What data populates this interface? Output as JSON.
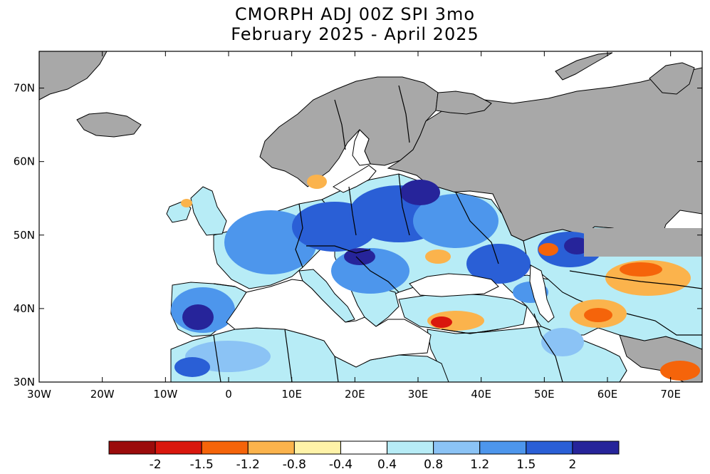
{
  "title": {
    "line1": "CMORPH ADJ 00Z SPI 3mo",
    "line2": "February 2025 - April 2025"
  },
  "map": {
    "lon_range": [
      -30,
      75
    ],
    "lat_range": [
      30,
      75
    ],
    "x_ticks": [
      "30W",
      "20W",
      "10W",
      "0",
      "10E",
      "20E",
      "30E",
      "40E",
      "50E",
      "60E",
      "70E"
    ],
    "y_ticks": [
      "30N",
      "40N",
      "50N",
      "60N",
      "70N"
    ],
    "land_no_data_color": "#a8a8a8",
    "ocean_color": "#ffffff",
    "coastline_color": "#000000"
  },
  "colorbar": {
    "colors": [
      "#9b0b0b",
      "#d9170d",
      "#f5640a",
      "#fbb34c",
      "#fff3a8",
      "#ffffff",
      "#b7ecf6",
      "#8bc3f5",
      "#4d96ec",
      "#2a5fd6",
      "#26249a"
    ],
    "labels": [
      "-2",
      "-1.5",
      "-1.2",
      "-0.8",
      "-0.4",
      "0.4",
      "0.8",
      "1.2",
      "1.5",
      "2"
    ]
  }
}
